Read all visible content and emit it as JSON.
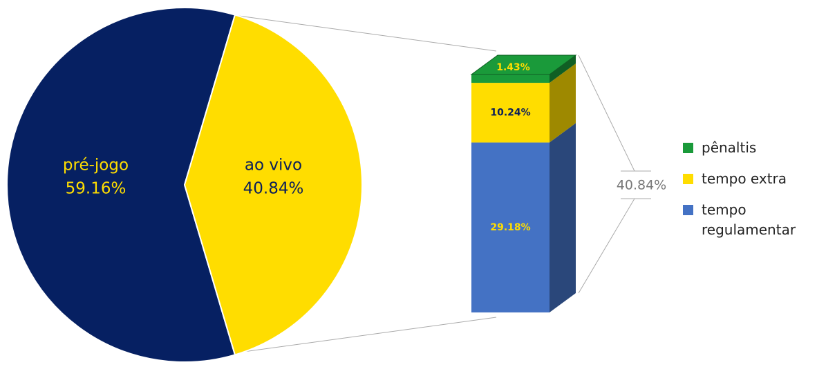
{
  "chart_data": [
    {
      "type": "pie",
      "categories": [
        "pré-jogo",
        "ao vivo"
      ],
      "values": [
        59.16,
        40.84
      ],
      "value_labels": [
        "59.16%",
        "40.84%"
      ],
      "colors": [
        "#062062",
        "#ffdd00"
      ]
    },
    {
      "type": "stacked-bar",
      "categories": [
        null
      ],
      "series": [
        {
          "name": "pênaltis",
          "color": "#1a9a3a",
          "values": [
            1.43
          ],
          "value_labels": [
            "1.43%"
          ]
        },
        {
          "name": "tempo extra",
          "color": "#ffdd00",
          "values": [
            10.24
          ],
          "value_labels": [
            "10.24%"
          ]
        },
        {
          "name": "tempo regulamentar",
          "color": "#4472c4",
          "values": [
            29.18
          ],
          "value_labels": [
            "29.18%"
          ]
        }
      ],
      "total": {
        "value": 40.84,
        "label": "40.84%"
      }
    }
  ]
}
